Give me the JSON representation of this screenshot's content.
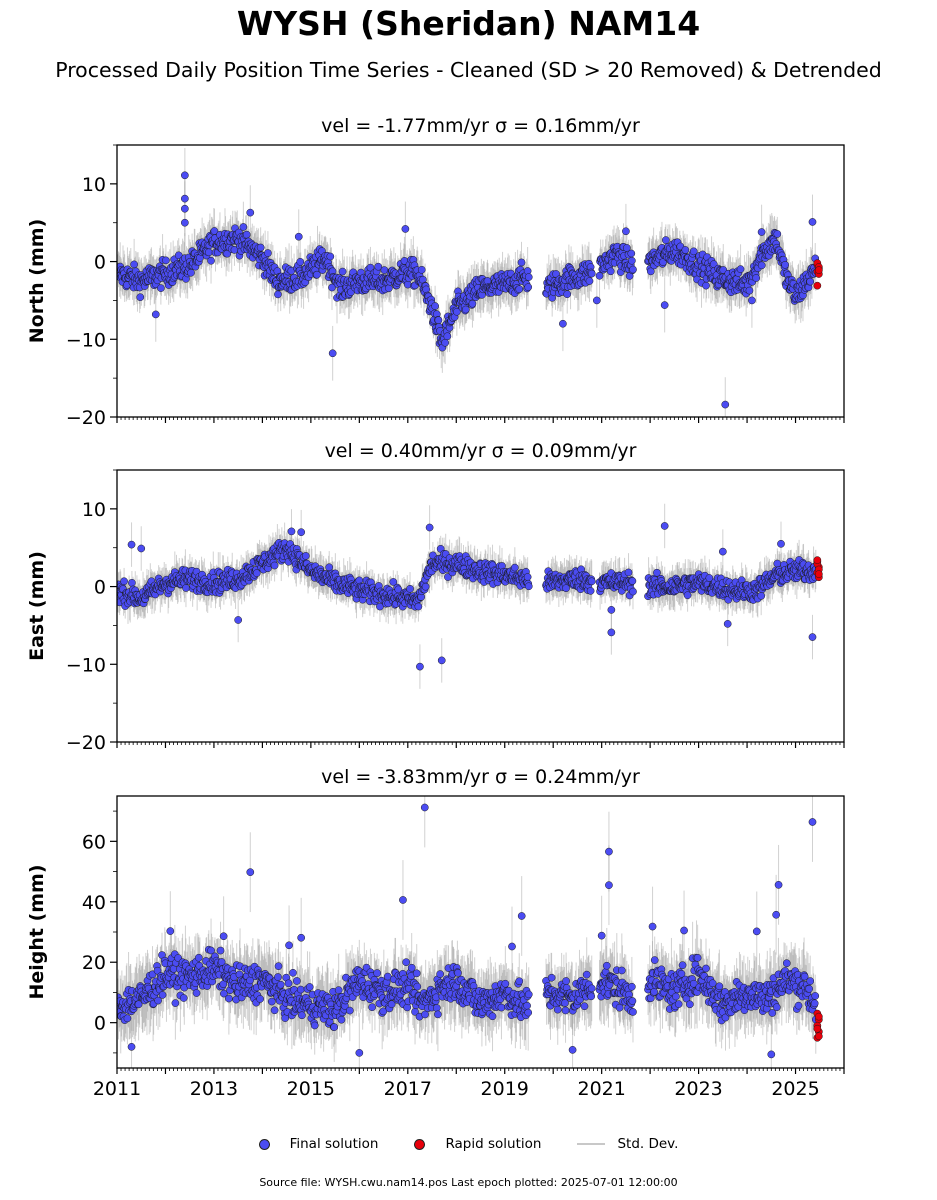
{
  "title": "WYSH (Sheridan) NAM14",
  "subtitle": "Processed Daily Position Time Series - Cleaned (SD > 20 Removed) & Detrended",
  "colors": {
    "final": "#4b4cf2",
    "rapid": "#e8000b",
    "stddev": "#c8c8c8",
    "edge": "#1a1a1a"
  },
  "legend": {
    "final": "Final solution",
    "rapid": "Rapid solution",
    "stddev": "Std. Dev."
  },
  "footer": "Source file: WYSH.cwu.nam14.pos  Last epoch plotted: 2025-07-01 12:00:00",
  "chart_data": [
    {
      "type": "scatter",
      "panel": "north",
      "title": "vel = -1.77mm/yr   σ = 0.16mm/yr",
      "ylabel": "North (mm)",
      "xlim": [
        2011.0,
        2026.0
      ],
      "ylim": [
        -20,
        15
      ],
      "yticks": [
        -20,
        -10,
        0,
        10
      ],
      "ytick_labels": [
        "−20",
        "−10",
        "0",
        "10"
      ],
      "trend": [
        [
          2011.0,
          -1.5
        ],
        [
          2011.5,
          -2.5
        ],
        [
          2012.0,
          -1.5
        ],
        [
          2012.5,
          -0.5
        ],
        [
          2013.0,
          2.5
        ],
        [
          2013.5,
          3.0
        ],
        [
          2014.0,
          0.5
        ],
        [
          2014.3,
          -2.5
        ],
        [
          2014.8,
          -2.0
        ],
        [
          2015.3,
          0.5
        ],
        [
          2015.6,
          -3.5
        ],
        [
          2016.0,
          -2.5
        ],
        [
          2016.5,
          -2.5
        ],
        [
          2016.9,
          -1.5
        ],
        [
          2017.2,
          -1.5
        ],
        [
          2017.5,
          -6.0
        ],
        [
          2017.7,
          -10.5
        ],
        [
          2018.0,
          -6.0
        ],
        [
          2018.5,
          -3.5
        ],
        [
          2019.0,
          -3.0
        ],
        [
          2019.4,
          -2.0
        ],
        [
          2019.85,
          -3.5
        ],
        [
          2020.2,
          -2.5
        ],
        [
          2020.7,
          -1.5
        ],
        [
          2020.9,
          -1.0
        ],
        [
          2021.3,
          1.0
        ],
        [
          2021.6,
          -0.5
        ],
        [
          2022.0,
          0.0
        ],
        [
          2022.5,
          1.5
        ],
        [
          2023.0,
          -0.5
        ],
        [
          2023.4,
          -2.0
        ],
        [
          2023.7,
          -2.5
        ],
        [
          2024.0,
          -3.0
        ],
        [
          2024.3,
          1.0
        ],
        [
          2024.6,
          3.0
        ],
        [
          2024.8,
          -2.0
        ],
        [
          2025.0,
          -4.5
        ],
        [
          2025.3,
          -2.0
        ],
        [
          2025.45,
          -0.5
        ]
      ],
      "gaps": [
        [
          2019.5,
          2019.85
        ],
        [
          2020.8,
          2020.95
        ],
        [
          2021.65,
          2021.95
        ]
      ],
      "noise": 1.6,
      "outliers": [
        [
          2012.4,
          11.1
        ],
        [
          2012.4,
          8.1
        ],
        [
          2012.4,
          6.8
        ],
        [
          2012.4,
          5.0
        ],
        [
          2013.75,
          6.3
        ],
        [
          2011.8,
          -6.8
        ],
        [
          2014.75,
          3.2
        ],
        [
          2016.95,
          4.2
        ],
        [
          2015.45,
          -11.8
        ],
        [
          2020.2,
          -8.0
        ],
        [
          2023.55,
          -18.4
        ],
        [
          2024.3,
          3.8
        ],
        [
          2025.35,
          5.1
        ],
        [
          2021.5,
          3.9
        ],
        [
          2022.3,
          -5.6
        ],
        [
          2024.1,
          -5.0
        ],
        [
          2020.9,
          -5.0
        ]
      ],
      "rapid": {
        "x": 2025.45,
        "values": [
          -0.4,
          -0.9,
          -1.3,
          -1.6,
          -0.2,
          -0.7,
          -3.1,
          -1.1
        ]
      }
    },
    {
      "type": "scatter",
      "panel": "east",
      "title": "vel = 0.40mm/yr   σ = 0.09mm/yr",
      "ylabel": "East (mm)",
      "xlim": [
        2011.0,
        2026.0
      ],
      "ylim": [
        -20,
        15
      ],
      "yticks": [
        -20,
        -10,
        0,
        10
      ],
      "ytick_labels": [
        "−20",
        "−10",
        "0",
        "10"
      ],
      "trend": [
        [
          2011.0,
          -0.5
        ],
        [
          2011.5,
          -1.5
        ],
        [
          2012.0,
          0.5
        ],
        [
          2012.5,
          1.0
        ],
        [
          2013.0,
          0.5
        ],
        [
          2013.5,
          1.0
        ],
        [
          2014.0,
          3.0
        ],
        [
          2014.5,
          5.0
        ],
        [
          2015.0,
          2.0
        ],
        [
          2015.5,
          0.5
        ],
        [
          2016.0,
          -0.5
        ],
        [
          2016.5,
          -1.0
        ],
        [
          2016.9,
          -1.5
        ],
        [
          2017.2,
          -2.0
        ],
        [
          2017.5,
          3.0
        ],
        [
          2018.0,
          3.0
        ],
        [
          2018.5,
          2.0
        ],
        [
          2019.0,
          1.5
        ],
        [
          2019.4,
          1.0
        ],
        [
          2019.85,
          0.5
        ],
        [
          2020.5,
          1.0
        ],
        [
          2021.0,
          0.5
        ],
        [
          2021.6,
          0.5
        ],
        [
          2022.0,
          0.0
        ],
        [
          2022.5,
          0.0
        ],
        [
          2023.0,
          0.5
        ],
        [
          2023.4,
          0.0
        ],
        [
          2023.8,
          -0.5
        ],
        [
          2024.2,
          -0.5
        ],
        [
          2024.6,
          1.5
        ],
        [
          2025.0,
          2.0
        ],
        [
          2025.45,
          2.0
        ]
      ],
      "gaps": [
        [
          2019.5,
          2019.85
        ],
        [
          2020.8,
          2020.95
        ],
        [
          2021.65,
          2021.95
        ]
      ],
      "noise": 1.3,
      "outliers": [
        [
          2011.3,
          5.4
        ],
        [
          2011.5,
          4.9
        ],
        [
          2013.5,
          -4.3
        ],
        [
          2014.6,
          7.1
        ],
        [
          2014.8,
          7.0
        ],
        [
          2017.25,
          -10.3
        ],
        [
          2017.7,
          -9.5
        ],
        [
          2017.45,
          7.6
        ],
        [
          2022.3,
          7.8
        ],
        [
          2021.2,
          -5.9
        ],
        [
          2021.2,
          -3.0
        ],
        [
          2025.35,
          -6.5
        ],
        [
          2023.6,
          -4.8
        ],
        [
          2024.7,
          5.5
        ],
        [
          2023.5,
          4.5
        ]
      ],
      "rapid": {
        "x": 2025.45,
        "values": [
          3.2,
          2.5,
          1.8,
          1.2,
          2.9,
          2.2,
          3.4,
          1.6
        ]
      }
    },
    {
      "type": "scatter",
      "panel": "height",
      "title": "vel = -3.83mm/yr   σ = 0.24mm/yr",
      "ylabel": "Height (mm)",
      "xlim": [
        2011.0,
        2026.0
      ],
      "ylim": [
        -15,
        75
      ],
      "yticks": [
        0,
        20,
        40,
        60
      ],
      "ytick_labels": [
        "0",
        "20",
        "40",
        "60"
      ],
      "xticks": [
        2011,
        2013,
        2015,
        2017,
        2019,
        2021,
        2023,
        2025
      ],
      "xtick_labels": [
        "2011",
        "2013",
        "2015",
        "2017",
        "2019",
        "2021",
        "2023",
        "2025"
      ],
      "trend": [
        [
          2011.0,
          5.0
        ],
        [
          2011.5,
          8.0
        ],
        [
          2012.0,
          16.0
        ],
        [
          2012.5,
          15.0
        ],
        [
          2013.0,
          18.0
        ],
        [
          2013.5,
          12.0
        ],
        [
          2014.0,
          14.0
        ],
        [
          2014.5,
          8.0
        ],
        [
          2015.0,
          6.0
        ],
        [
          2015.5,
          4.0
        ],
        [
          2016.0,
          14.0
        ],
        [
          2016.5,
          10.0
        ],
        [
          2017.0,
          12.0
        ],
        [
          2017.3,
          6.0
        ],
        [
          2017.7,
          12.0
        ],
        [
          2018.0,
          14.0
        ],
        [
          2018.5,
          6.0
        ],
        [
          2019.0,
          10.0
        ],
        [
          2019.45,
          5.0
        ],
        [
          2019.85,
          10.0
        ],
        [
          2020.4,
          8.0
        ],
        [
          2020.95,
          14.0
        ],
        [
          2021.3,
          12.0
        ],
        [
          2021.6,
          8.0
        ],
        [
          2022.0,
          14.0
        ],
        [
          2022.5,
          10.0
        ],
        [
          2023.0,
          16.0
        ],
        [
          2023.5,
          6.0
        ],
        [
          2024.0,
          10.0
        ],
        [
          2024.4,
          8.0
        ],
        [
          2024.8,
          14.0
        ],
        [
          2025.2,
          12.0
        ],
        [
          2025.45,
          5.0
        ]
      ],
      "gaps": [
        [
          2019.5,
          2019.85
        ],
        [
          2020.8,
          2020.95
        ],
        [
          2021.65,
          2021.95
        ]
      ],
      "noise": 6.0,
      "outliers": [
        [
          2013.75,
          49.8
        ],
        [
          2016.9,
          40.6
        ],
        [
          2017.35,
          71.2
        ],
        [
          2019.35,
          35.3
        ],
        [
          2021.15,
          56.6
        ],
        [
          2021.15,
          45.5
        ],
        [
          2024.65,
          45.6
        ],
        [
          2025.35,
          66.4
        ],
        [
          2024.6,
          35.7
        ],
        [
          2014.55,
          25.6
        ],
        [
          2014.8,
          28.1
        ],
        [
          2012.1,
          30.3
        ],
        [
          2022.7,
          30.5
        ],
        [
          2024.2,
          30.2
        ],
        [
          2021.0,
          28.8
        ],
        [
          2022.05,
          31.8
        ],
        [
          2013.2,
          28.6
        ],
        [
          2019.15,
          25.2
        ],
        [
          2011.3,
          -8.0
        ],
        [
          2016.0,
          -10.0
        ],
        [
          2024.5,
          -10.5
        ],
        [
          2020.4,
          -9.0
        ]
      ],
      "rapid": {
        "x": 2025.45,
        "values": [
          3.0,
          1.0,
          -1.0,
          -3.0,
          -5.0,
          2.0,
          -2.0,
          -4.5
        ]
      }
    }
  ]
}
